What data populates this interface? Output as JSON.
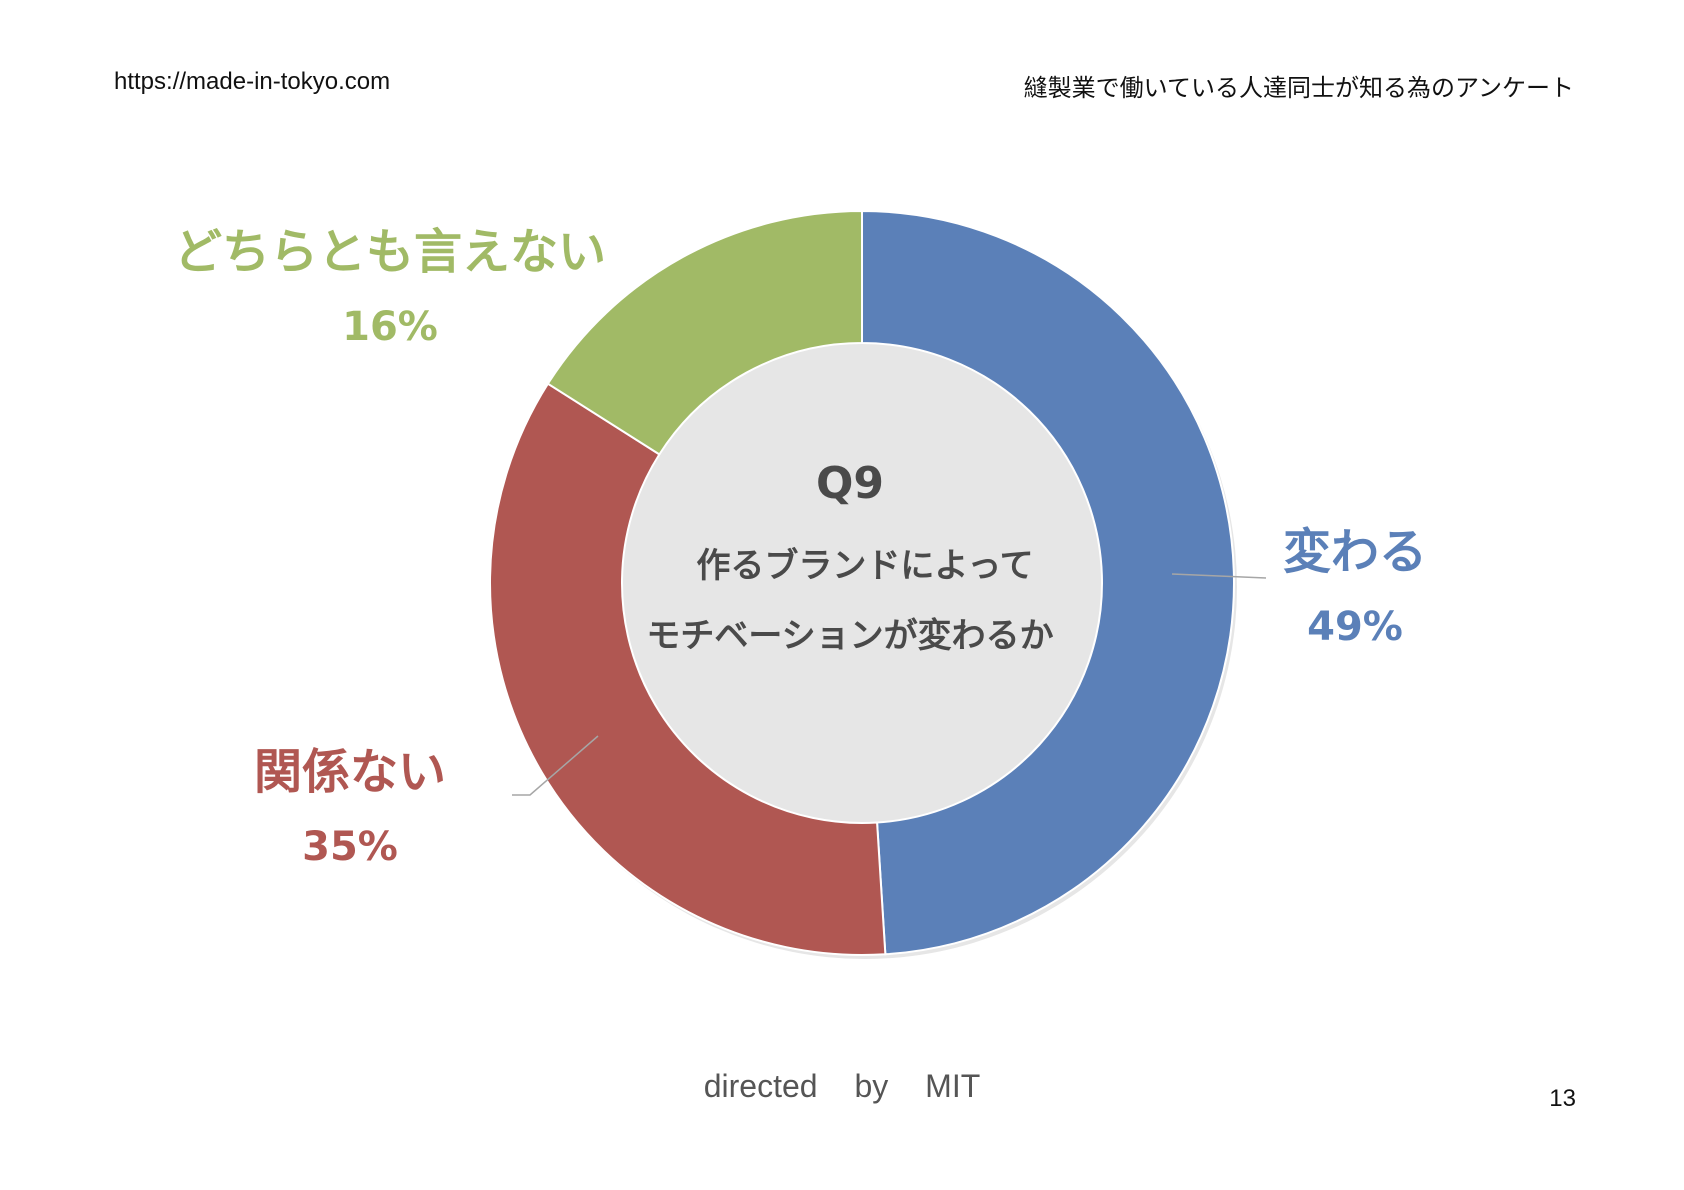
{
  "header": {
    "url": "https://made-in-tokyo.com",
    "title": "縫製業で働いている人達同士が知る為のアンケート"
  },
  "chart_data": {
    "type": "pie",
    "variant": "donut",
    "title": "Q9",
    "subtitle_lines": [
      "作るブランドによって",
      "モチベーションが変わるか"
    ],
    "slices": [
      {
        "label": "変わる",
        "value": 49,
        "display": "49%",
        "color": "#5b80b8"
      },
      {
        "label": "関係ない",
        "value": 35,
        "display": "35%",
        "color": "#b05752"
      },
      {
        "label": "どちらとも言えない",
        "value": 16,
        "display": "16%",
        "color": "#a1ba66"
      }
    ],
    "start": "12 o'clock",
    "direction": "clockwise"
  },
  "footer": {
    "credit": "directed by MIT",
    "page_number": "13"
  }
}
